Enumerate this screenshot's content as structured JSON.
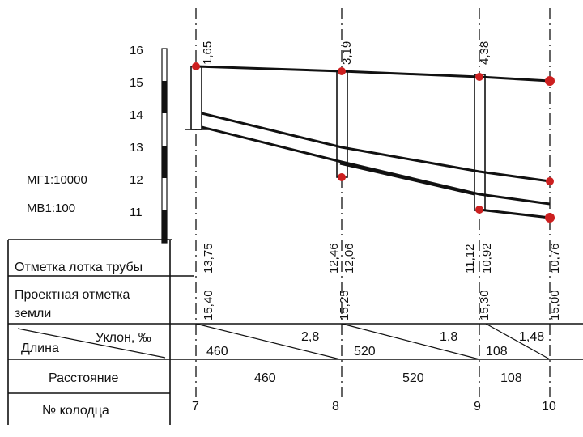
{
  "scale": {
    "horizontal": "МГ1:10000",
    "vertical": "МВ1:100",
    "ticks": [
      "16",
      "15",
      "14",
      "13",
      "12",
      "11"
    ]
  },
  "rows": {
    "tray_mark": "Отметка лотка трубы",
    "ground_mark_line1": "Проектная отметка",
    "ground_mark_line2": "земли",
    "slope": "Уклон, ‰",
    "length": "Длина",
    "distance": "Расстояние",
    "well_no": "№ колодца"
  },
  "wells": [
    {
      "number": "7",
      "depth": "1,65",
      "tray": "13,75",
      "ground": "15,40"
    },
    {
      "number": "8",
      "depth": "3,19",
      "tray": "12,46",
      "tray2": "12,06",
      "ground": "15,25"
    },
    {
      "number": "9",
      "depth": "4,38",
      "tray": "11,12",
      "tray2": "10,92",
      "ground": "15,30"
    },
    {
      "number": "10",
      "depth": "",
      "tray": "10,76",
      "ground": "15,00"
    }
  ],
  "segments": [
    {
      "slope": "2,8",
      "length": "460",
      "distance": "460"
    },
    {
      "slope": "1,8",
      "length": "520",
      "distance": "520"
    },
    {
      "slope": "1,48",
      "length": "108",
      "distance": "108"
    }
  ],
  "colors": {
    "line": "#111111",
    "marker": "#cc1f1f",
    "well_fill": "#ffffff"
  }
}
